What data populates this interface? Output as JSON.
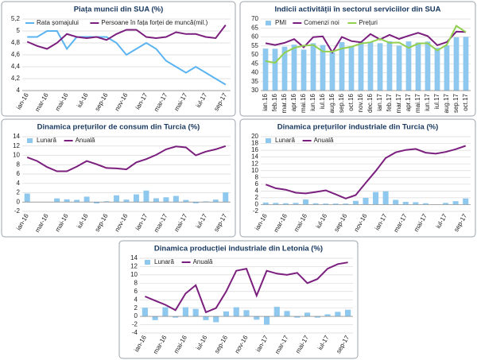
{
  "chart_data": [
    {
      "type": "line",
      "title": "Piața muncii din SUA (%)",
      "categories": [
        "ian-16",
        null,
        "mar-16",
        null,
        "mai-16",
        null,
        "iul-16",
        null,
        "sep-16",
        null,
        "nov-16",
        null,
        "ian-17",
        null,
        "mar-17",
        null,
        "mai-17",
        null,
        "iul-17",
        null,
        "sep-17"
      ],
      "series": [
        {
          "name": "Rata șomajului",
          "type": "line",
          "color": "#5bb4f0",
          "values": [
            4.9,
            4.9,
            5.0,
            5.0,
            4.7,
            4.9,
            4.9,
            4.9,
            4.9,
            4.8,
            4.6,
            4.7,
            4.8,
            4.7,
            4.5,
            4.4,
            4.3,
            4.4,
            4.3,
            4.2,
            4.1
          ]
        },
        {
          "name": "Persoane în fața forței de muncă(mil.)",
          "type": "line",
          "color": "#7b1f7e",
          "values": [
            4.82,
            4.75,
            4.7,
            4.8,
            4.95,
            4.9,
            4.88,
            4.9,
            4.85,
            4.95,
            5.02,
            5.02,
            4.9,
            4.88,
            4.9,
            4.98,
            4.95,
            4.95,
            4.9,
            4.88,
            5.1
          ]
        }
      ],
      "ylim": [
        4,
        5.2
      ],
      "yticks": [
        4,
        {
          "value": 4.2,
          "label": "4,2"
        },
        {
          "value": 4.4,
          "label": "4,4"
        },
        {
          "value": 4.6,
          "label": "4,6"
        },
        {
          "value": 4.8,
          "label": "4,8"
        },
        5,
        {
          "value": 5.2,
          "label": "5,2"
        }
      ],
      "grid": true
    },
    {
      "type": "bar_line",
      "title": "Indicii activității în sectorul serviciilor din SUA",
      "categories": [
        "ian.16",
        "feb.16",
        "mar.16",
        "apr.16",
        "mai.16",
        "iun.16",
        "iul.16",
        "aug.16",
        "sep.16",
        "oct.16",
        "nov.16",
        "dec.16",
        "ian.17",
        "feb.17",
        "mar.17",
        "apr.17",
        "mai.17",
        "iun.17",
        "iul.17",
        "aug.17",
        "sep.17",
        "oct.17"
      ],
      "series": [
        {
          "name": "PMI",
          "type": "bar",
          "color": "#8ec8ee",
          "values": [
            53.5,
            53.4,
            54.5,
            55.7,
            52.9,
            56.5,
            55.5,
            51.4,
            57.1,
            54.8,
            57.2,
            57.2,
            56.5,
            57.6,
            55.2,
            57.5,
            56.9,
            57.4,
            53.9,
            55.3,
            59.8,
            60.1
          ]
        },
        {
          "name": "Comenzi noi",
          "type": "line",
          "color": "#7b1f7e",
          "values": [
            56.5,
            55.5,
            56.7,
            58.8,
            54.2,
            59.9,
            60.3,
            51.4,
            60.0,
            57.7,
            57.0,
            61.6,
            58.6,
            61.2,
            58.9,
            60.7,
            62.3,
            60.5,
            55.4,
            57.1,
            63.0,
            62.8
          ]
        },
        {
          "name": "Prețuri",
          "type": "line",
          "color": "#92d050",
          "values": [
            46.5,
            45.5,
            51.2,
            53.9,
            55.1,
            55.5,
            51.9,
            51.8,
            53.5,
            54.5,
            56.3,
            57.0,
            59.0,
            56.7,
            56.9,
            53.9,
            56.3,
            56.5,
            52.4,
            55.6,
            66.2,
            62.7
          ]
        }
      ],
      "ylim": [
        30,
        70
      ],
      "yticks": [
        30,
        35,
        40,
        45,
        50,
        55,
        60,
        65,
        70
      ],
      "grid": true
    },
    {
      "type": "bar_line",
      "title": "Dinamica prețurilor de consum din Turcia (%)",
      "categories": [
        "ian-16",
        null,
        "mar-16",
        null,
        "mai-16",
        null,
        "iul-16",
        null,
        "sep-16",
        null,
        "nov-16",
        null,
        "ian-17",
        null,
        "mar-17",
        null,
        "mai-17",
        null,
        "iul-17",
        null,
        "sep-17"
      ],
      "series": [
        {
          "name": "Lunară",
          "type": "bar",
          "color": "#8ec8ee",
          "values": [
            1.82,
            -0.02,
            -0.04,
            0.78,
            0.58,
            0.47,
            1.16,
            -0.29,
            0.18,
            1.44,
            0.52,
            1.64,
            2.46,
            0.81,
            1.02,
            1.31,
            0.45,
            -0.27,
            0.15,
            0.52,
            2.08
          ]
        },
        {
          "name": "Anuală",
          "type": "line",
          "color": "#7b1f7e",
          "values": [
            9.6,
            8.8,
            7.5,
            6.6,
            6.6,
            7.6,
            8.8,
            8.1,
            7.3,
            7.2,
            7.0,
            8.5,
            9.2,
            10.1,
            11.3,
            11.9,
            11.7,
            10.0,
            10.8,
            11.3,
            12.0
          ]
        }
      ],
      "ylim": [
        -2,
        14
      ],
      "yticks": [
        -2,
        0,
        2,
        4,
        6,
        8,
        10,
        12,
        14
      ],
      "grid": true
    },
    {
      "type": "bar_line",
      "title": "Dinamica prețurilor industriale din Turcia (%)",
      "categories": [
        "ian-16",
        null,
        "mar-16",
        null,
        "mai-16",
        null,
        "iul-16",
        null,
        "sep-16",
        null,
        "nov-16",
        null,
        "ian-17",
        null,
        "mar-17",
        null,
        "mai-17",
        null,
        "iul-17",
        null,
        "sep-17"
      ],
      "series": [
        {
          "name": "Lunară",
          "type": "bar",
          "color": "#8ec8ee",
          "values": [
            0.6,
            0.5,
            0.4,
            0.5,
            1.5,
            0.4,
            0.3,
            0.3,
            0.3,
            1.1,
            2.0,
            3.7,
            3.9,
            1.4,
            0.8,
            0.7,
            0.4,
            0.1,
            0.5,
            1.0,
            1.8
          ]
        },
        {
          "name": "Anuală",
          "type": "line",
          "color": "#7b1f7e",
          "values": [
            5.9,
            4.8,
            4.4,
            3.5,
            3.3,
            3.7,
            4.2,
            3.0,
            1.8,
            2.8,
            6.4,
            9.9,
            13.7,
            15.4,
            16.1,
            16.4,
            15.3,
            15.0,
            15.5,
            16.3,
            17.3
          ]
        }
      ],
      "ylim": [
        -2,
        20
      ],
      "yticks": [
        -2,
        0,
        2,
        4,
        6,
        8,
        10,
        12,
        14,
        16,
        18,
        20
      ],
      "grid": true
    },
    {
      "type": "bar_line",
      "title": "Dinamica producției industriale din Letonia (%)",
      "categories": [
        "ian-16",
        null,
        "mar-16",
        null,
        "mai-16",
        null,
        "iul-16",
        null,
        "sep-16",
        null,
        "nov-16",
        null,
        "ian-17",
        null,
        "mar-17",
        null,
        "mai-17",
        null,
        "iul-17",
        null,
        "sep-17"
      ],
      "series": [
        {
          "name": "Lunară",
          "type": "bar",
          "color": "#8ec8ee",
          "values": [
            2.1,
            -0.9,
            2.2,
            -0.3,
            2.2,
            1.8,
            -0.9,
            -1.4,
            1.2,
            2.2,
            1.5,
            -0.8,
            -2.0,
            2.3,
            1.3,
            -0.3,
            0.9,
            -0.3,
            0.5,
            1.1,
            1.6
          ]
        },
        {
          "name": "Anuală",
          "type": "line",
          "color": "#7b1f7e",
          "values": [
            4.8,
            3.8,
            2.8,
            1.5,
            5.5,
            7.5,
            1.0,
            2.0,
            6.0,
            11.0,
            11.5,
            5.0,
            11.0,
            10.3,
            10.0,
            10.5,
            8.0,
            9.0,
            11.5,
            12.6,
            13.0
          ]
        }
      ],
      "ylim": [
        -4,
        14
      ],
      "yticks": [
        -4,
        -2,
        0,
        2,
        4,
        6,
        8,
        10,
        12,
        14
      ],
      "grid": true
    }
  ]
}
